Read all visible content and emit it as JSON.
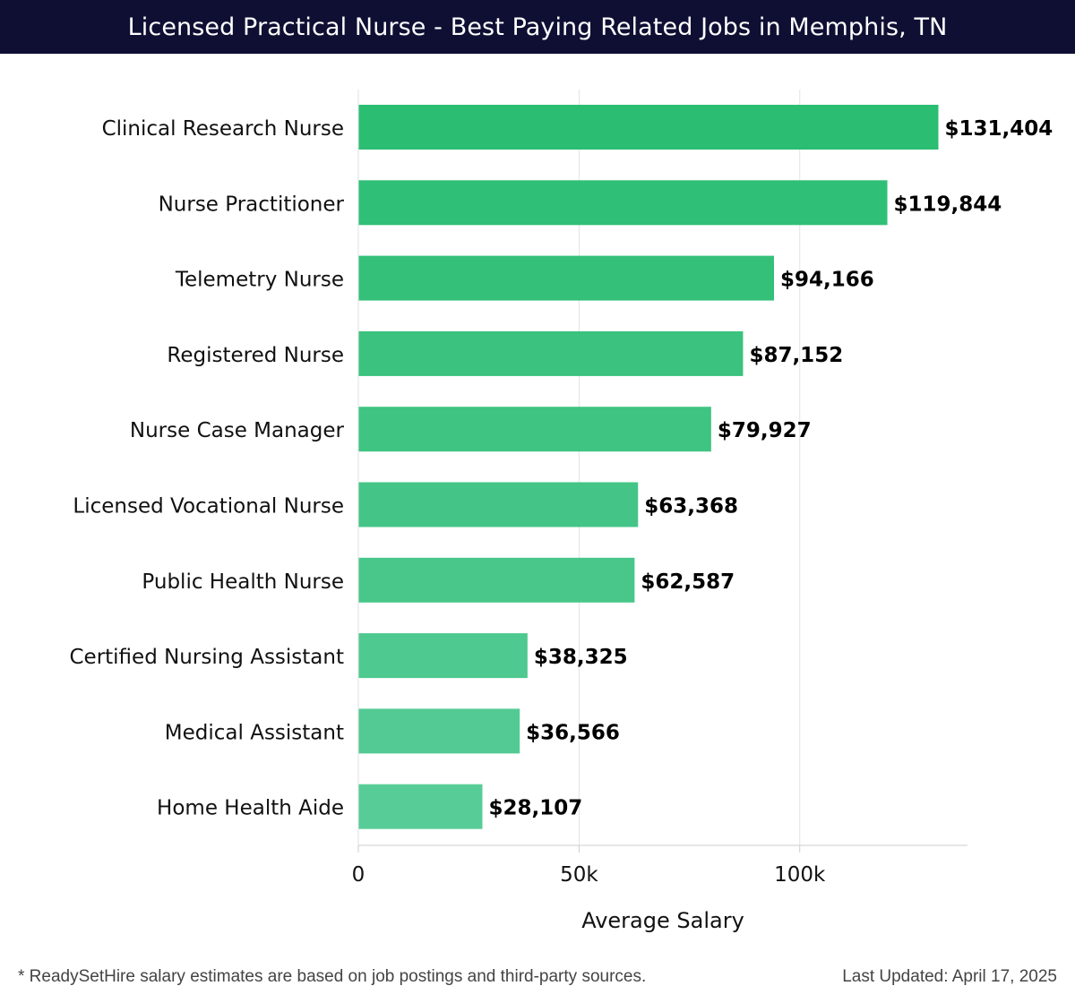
{
  "header": {
    "title": "Licensed Practical Nurse - Best Paying Related Jobs in Memphis, TN"
  },
  "chart_data": {
    "type": "bar",
    "orientation": "horizontal",
    "title": "Licensed Practical Nurse - Best Paying Related Jobs in Memphis, TN",
    "xlabel": "Average Salary",
    "ylabel": "",
    "xlim": [
      0,
      138000
    ],
    "x_ticks": [
      0,
      50000,
      100000
    ],
    "x_tick_labels": [
      "0",
      "50k",
      "100k"
    ],
    "grid": true,
    "categories": [
      "Clinical Research Nurse",
      "Nurse Practitioner",
      "Telemetry Nurse",
      "Registered Nurse",
      "Nurse Case Manager",
      "Licensed Vocational Nurse",
      "Public Health Nurse",
      "Certified Nursing Assistant",
      "Medical Assistant",
      "Home Health Aide"
    ],
    "values": [
      131404,
      119844,
      94166,
      87152,
      79927,
      63368,
      62587,
      38325,
      36566,
      28107
    ],
    "value_labels": [
      "$131,404",
      "$119,844",
      "$94,166",
      "$87,152",
      "$79,927",
      "$63,368",
      "$62,587",
      "$38,325",
      "$36,566",
      "$28,107"
    ],
    "colors": {
      "bar_top": "#2bbd72",
      "bar_bottom": "#58cc97",
      "grid": "#e2e2e2",
      "axis": "#cccccc",
      "header_bg": "#0e0f33"
    }
  },
  "footer": {
    "note": "* ReadySetHire salary estimates are based on job postings and third-party sources.",
    "updated": "Last Updated: April 17, 2025"
  }
}
